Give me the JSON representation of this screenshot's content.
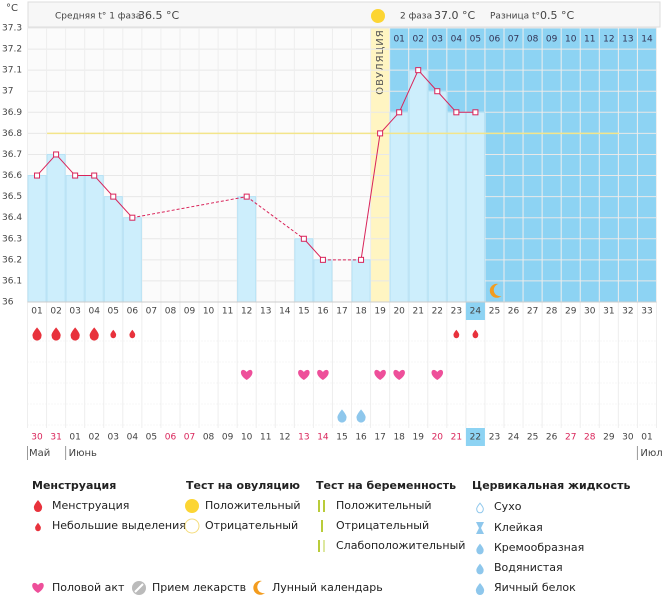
{
  "chart_data": {
    "type": "line",
    "unit_label": "°C",
    "header": {
      "phase1_label": "Средняя t° 1 фаза",
      "phase1_value": "36.5 °C",
      "phase2_label": "2 фаза",
      "phase2_value": "37.0 °C",
      "diff_label": "Разница t°",
      "diff_value": "0.5 °C"
    },
    "ovulation_label": "ОВУЛЯЦИЯ",
    "categories": [
      "01",
      "02",
      "03",
      "04",
      "05",
      "06",
      "07",
      "08",
      "09",
      "10",
      "11",
      "12",
      "13",
      "14",
      "15",
      "16",
      "17",
      "18",
      "19",
      "20",
      "21",
      "22",
      "23",
      "24",
      "25",
      "26",
      "27",
      "28",
      "29",
      "30",
      "31",
      "32",
      "33"
    ],
    "values": [
      36.6,
      36.7,
      36.6,
      36.6,
      36.5,
      36.4,
      null,
      null,
      null,
      null,
      null,
      36.5,
      null,
      null,
      36.3,
      36.2,
      null,
      36.2,
      36.8,
      36.9,
      37.1,
      37.0,
      36.9,
      36.9,
      null,
      null,
      null,
      null,
      null,
      null,
      null,
      null,
      null
    ],
    "color": "#d9245a",
    "bar_color": "#cdeefc",
    "coverline": 36.8,
    "ylim": [
      36,
      37.3
    ],
    "yticks": [
      36,
      36.1,
      36.2,
      36.3,
      36.4,
      36.5,
      36.6,
      36.7,
      36.8,
      36.9,
      37,
      37.1,
      37.2,
      37.3
    ],
    "grid": true,
    "post_ovulation_days": [
      "01",
      "02",
      "03",
      "04",
      "05",
      "06",
      "07",
      "08",
      "09",
      "10",
      "11",
      "12",
      "13",
      "14"
    ],
    "dates": [
      "30",
      "31",
      "01",
      "02",
      "03",
      "04",
      "05",
      "06",
      "07",
      "08",
      "09",
      "10",
      "11",
      "12",
      "13",
      "14",
      "15",
      "16",
      "17",
      "18",
      "19",
      "20",
      "21",
      "22",
      "23",
      "24",
      "25",
      "26",
      "27",
      "28",
      "29",
      "30",
      "01"
    ],
    "months": [
      "Май",
      "Июнь",
      "Июль"
    ],
    "legend": {
      "menstruation": {
        "title": "Менструация",
        "items": [
          "Менструация",
          "Небольшие выделения"
        ]
      },
      "ovulation_test": {
        "title": "Тест на овуляцию",
        "items": [
          "Положительный",
          "Отрицательный"
        ]
      },
      "pregnancy_test": {
        "title": "Тест на беременность",
        "items": [
          "Положительный",
          "Отрицательный",
          "Слабоположительный"
        ]
      },
      "cervical": {
        "title": "Цервикальная жидкость",
        "items": [
          "Сухо",
          "Клейкая",
          "Кремообразная",
          "Водянистая",
          "Яичный белок"
        ]
      },
      "other": [
        "Половой акт",
        "Прием лекарств",
        "Лунный календарь"
      ]
    }
  }
}
